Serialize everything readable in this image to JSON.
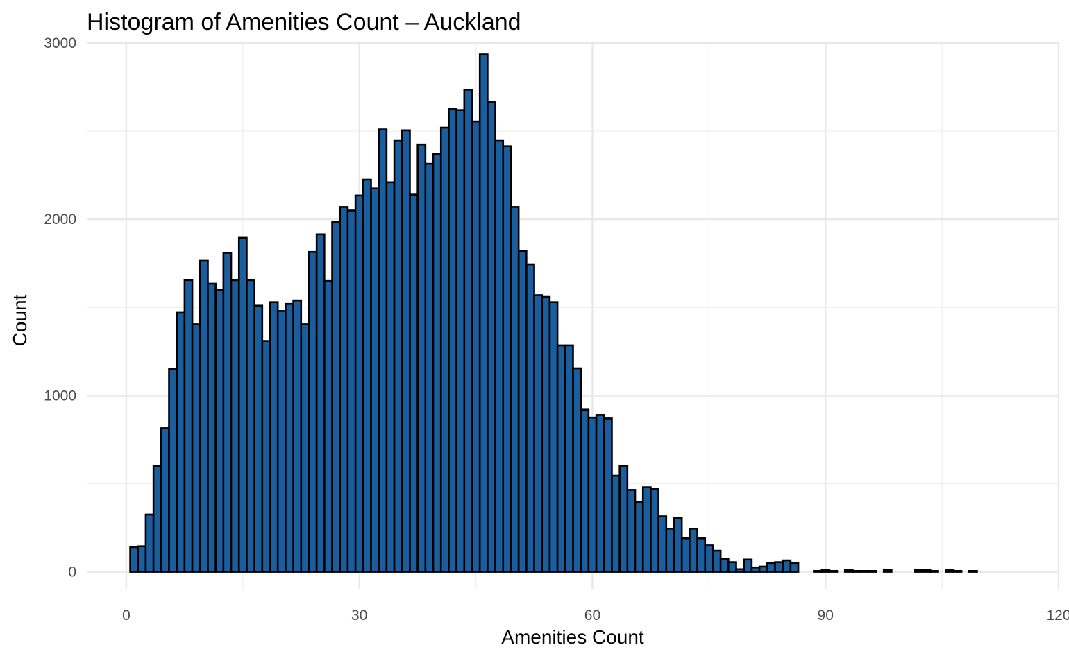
{
  "chart_data": {
    "type": "bar",
    "title": "Histogram of Amenities Count – Auckland",
    "xlabel": "Amenities Count",
    "ylabel": "Count",
    "xlim": [
      -5,
      120
    ],
    "ylim": [
      -100,
      3000
    ],
    "x_ticks": [
      0,
      30,
      60,
      90,
      120
    ],
    "y_ticks": [
      0,
      1000,
      2000,
      3000
    ],
    "x_minor_ticks": [
      15,
      45,
      75,
      105
    ],
    "y_minor_ticks": [
      500,
      1500,
      2500
    ],
    "bin_width": 1,
    "bar_color": "#1b5e9e",
    "bar_edge_color": "#000000",
    "grid": true,
    "bins": [
      1,
      2,
      3,
      4,
      5,
      6,
      7,
      8,
      9,
      10,
      11,
      12,
      13,
      14,
      15,
      16,
      17,
      18,
      19,
      20,
      21,
      22,
      23,
      24,
      25,
      26,
      27,
      28,
      29,
      30,
      31,
      32,
      33,
      34,
      35,
      36,
      37,
      38,
      39,
      40,
      41,
      42,
      43,
      44,
      45,
      46,
      47,
      48,
      49,
      50,
      51,
      52,
      53,
      54,
      55,
      56,
      57,
      58,
      59,
      60,
      61,
      62,
      63,
      64,
      65,
      66,
      67,
      68,
      69,
      70,
      71,
      72,
      73,
      74,
      75,
      76,
      77,
      78,
      79,
      80,
      81,
      82,
      83,
      84,
      85,
      86,
      87,
      88,
      89,
      90,
      91,
      92,
      93,
      94,
      95,
      96,
      97,
      98,
      99,
      100,
      101,
      102,
      103,
      104,
      105,
      106,
      107,
      108,
      109,
      110,
      111,
      112,
      113,
      114,
      115
    ],
    "values": [
      140,
      145,
      325,
      600,
      815,
      1150,
      1470,
      1655,
      1405,
      1765,
      1635,
      1600,
      1810,
      1655,
      1895,
      1655,
      1510,
      1310,
      1530,
      1480,
      1520,
      1540,
      1405,
      1815,
      1915,
      1650,
      1985,
      2070,
      2050,
      2135,
      2225,
      2175,
      2510,
      2210,
      2445,
      2505,
      2140,
      2425,
      2315,
      2370,
      2520,
      2625,
      2620,
      2735,
      2555,
      2935,
      2665,
      2445,
      2415,
      2070,
      1820,
      1745,
      1570,
      1560,
      1530,
      1285,
      1285,
      1155,
      920,
      875,
      890,
      870,
      545,
      600,
      465,
      395,
      480,
      470,
      315,
      245,
      305,
      190,
      245,
      190,
      150,
      120,
      75,
      55,
      15,
      70,
      25,
      30,
      50,
      55,
      65,
      50,
      0,
      0,
      5,
      10,
      5,
      0,
      10,
      5,
      5,
      5,
      0,
      10,
      0,
      0,
      0,
      10,
      10,
      5,
      0,
      10,
      5,
      0,
      5,
      0,
      0,
      0,
      0,
      0,
      0
    ]
  }
}
